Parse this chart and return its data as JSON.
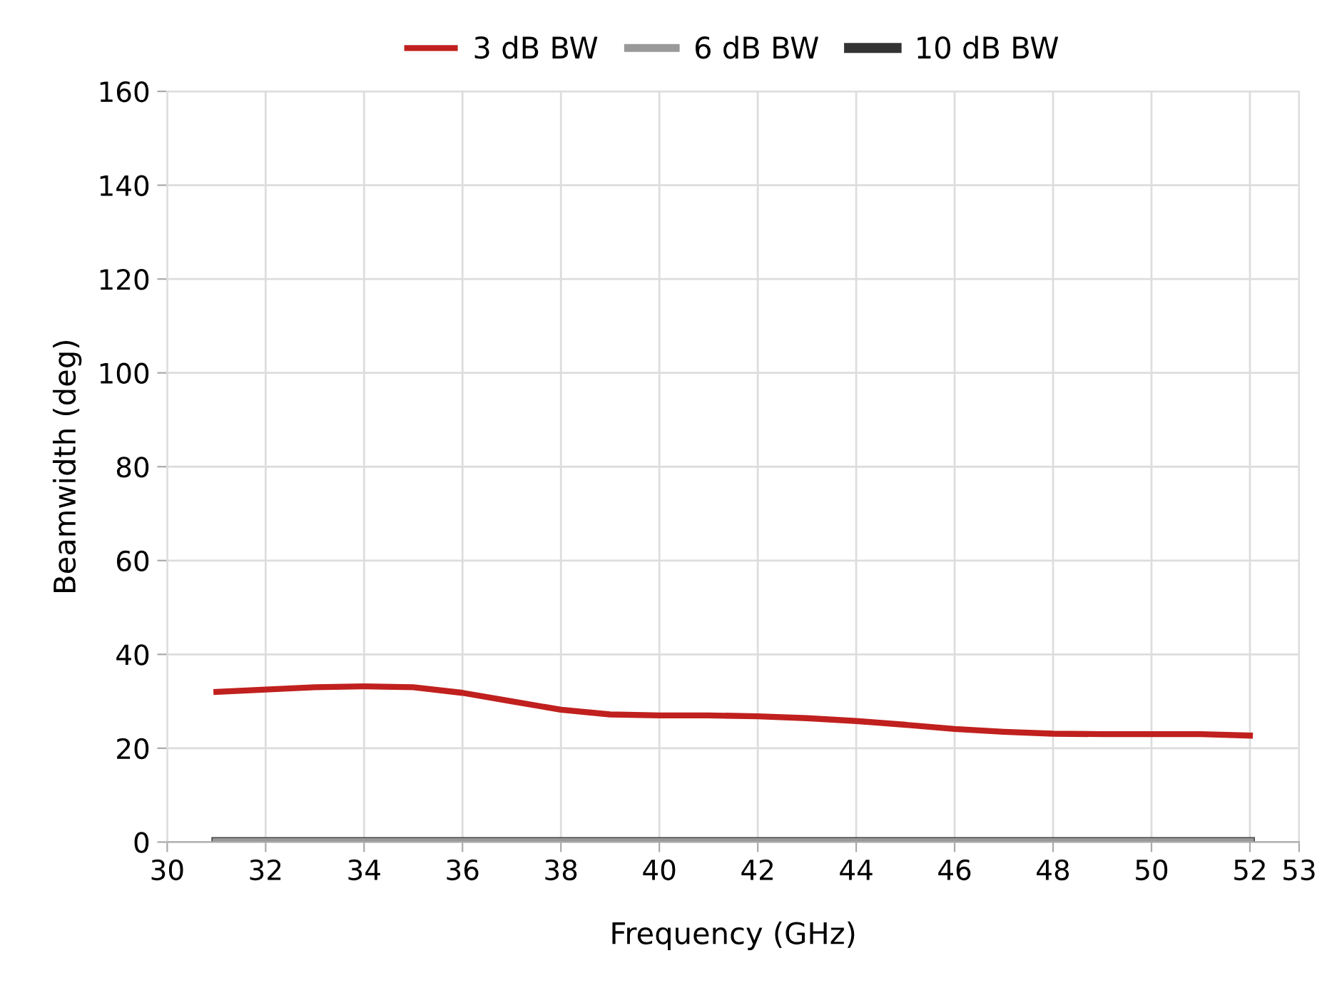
{
  "chart_data": {
    "type": "line",
    "xlabel": "Frequency (GHz)",
    "ylabel": "Beamwidth (deg)",
    "x": [
      31,
      32,
      33,
      34,
      35,
      36,
      37,
      38,
      39,
      40,
      41,
      42,
      43,
      44,
      45,
      46,
      47,
      48,
      49,
      50,
      51,
      52
    ],
    "series": [
      {
        "name": "10 dB BW",
        "color": "#333333",
        "values": [
          0,
          0,
          0,
          0,
          0,
          0,
          0,
          0,
          0,
          0,
          0,
          0,
          0,
          0,
          0,
          0,
          0,
          0,
          0,
          0,
          0,
          0
        ]
      },
      {
        "name": "6 dB BW",
        "color": "#999999",
        "values": [
          0,
          0,
          0,
          0,
          0,
          0,
          0,
          0,
          0,
          0,
          0,
          0,
          0,
          0,
          0,
          0,
          0,
          0,
          0,
          0,
          0,
          0
        ]
      },
      {
        "name": "3 dB BW",
        "color": "#c0201e",
        "values": [
          32,
          32.5,
          33,
          33.2,
          33,
          31.8,
          30,
          28.2,
          27.2,
          27,
          27,
          26.8,
          26.4,
          25.8,
          25,
          24.1,
          23.5,
          23.1,
          23,
          23,
          23,
          22.7
        ]
      }
    ],
    "xlim": [
      30,
      53
    ],
    "xticks": [
      30,
      32,
      34,
      36,
      38,
      40,
      42,
      44,
      46,
      48,
      50,
      52,
      53
    ],
    "ylim": [
      0,
      160
    ],
    "yticks": [
      0,
      20,
      40,
      60,
      80,
      100,
      120,
      140,
      160
    ],
    "grid": true,
    "legend": "top",
    "marker": "none",
    "line_style": "solid"
  }
}
